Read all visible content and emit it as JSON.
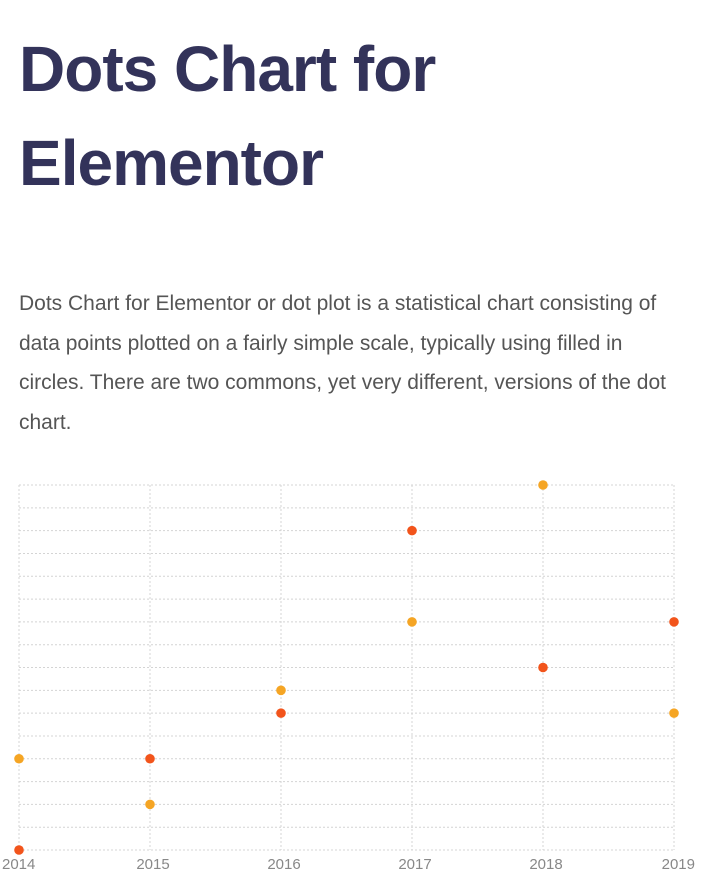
{
  "header": {
    "title": "Dots Chart for Elementor"
  },
  "intro": {
    "text": "Dots Chart for Elementor or dot plot is a statistical chart consisting of data points plotted on a fairly simple scale, typically using filled in circles. There are two commons, yet very different, versions of the dot chart."
  },
  "colors": {
    "title": "#33335a",
    "body_text": "#555555",
    "grid": "#d4d4d4",
    "tick_label": "#888888"
  },
  "chart_data": {
    "type": "scatter",
    "title": "",
    "xlabel": "",
    "ylabel": "",
    "x_ticks": [
      "2014",
      "2015",
      "2016",
      "2017",
      "2018",
      "2019"
    ],
    "xlim": [
      2014,
      2019
    ],
    "ylim": [
      0,
      16
    ],
    "grid": true,
    "legend": "none",
    "series": [
      {
        "color": "#f5a524",
        "points": [
          {
            "x": 2014,
            "y": 4
          },
          {
            "x": 2015,
            "y": 2
          },
          {
            "x": 2016,
            "y": 7
          },
          {
            "x": 2017,
            "y": 10
          },
          {
            "x": 2018,
            "y": 16
          },
          {
            "x": 2019,
            "y": 6
          }
        ]
      },
      {
        "color": "#f2541b",
        "points": [
          {
            "x": 2014,
            "y": 0
          },
          {
            "x": 2015,
            "y": 4
          },
          {
            "x": 2016,
            "y": 6
          },
          {
            "x": 2017,
            "y": 14
          },
          {
            "x": 2018,
            "y": 8
          },
          {
            "x": 2019,
            "y": 10
          }
        ]
      }
    ]
  }
}
